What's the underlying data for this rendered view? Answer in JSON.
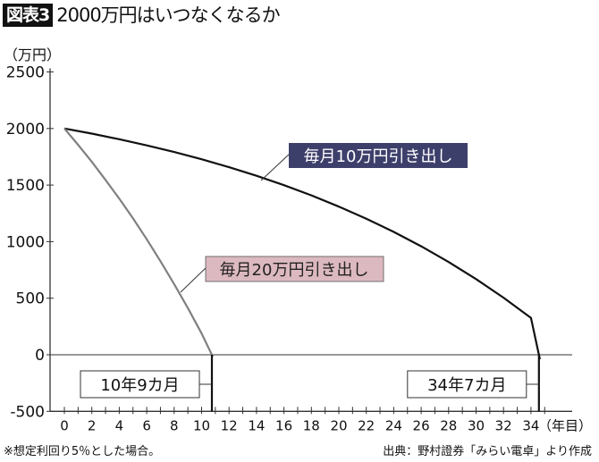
{
  "header": {
    "badge": "図表3",
    "title": "2000万円はいつなくなるか"
  },
  "axis_unit_y": "（万円）",
  "axis_unit_x": "（年目）",
  "footer": {
    "note": "※想定利回り5％とした場合。",
    "source": "出典：野村證券「みらい電卓」より作成"
  },
  "colors": {
    "series_10": "#111111",
    "series_20": "#808080",
    "label_10_bg": "#3d3f6b",
    "label_20_bg": "#dcb9c0"
  },
  "chart_data": {
    "type": "line",
    "title": "2000万円はいつなくなるか",
    "xlabel": "（年目）",
    "ylabel": "（万円）",
    "xlim": [
      0,
      35
    ],
    "ylim": [
      -500,
      2500
    ],
    "xticks": [
      0,
      2,
      4,
      6,
      8,
      10,
      12,
      14,
      16,
      18,
      20,
      22,
      24,
      26,
      28,
      30,
      32,
      34
    ],
    "yticks": [
      2500,
      2000,
      1500,
      1000,
      500,
      0,
      -500
    ],
    "grid": false,
    "series": [
      {
        "name": "毎月10万円引き出し",
        "x": [
          0,
          2,
          4,
          6,
          8,
          10,
          12,
          14,
          16,
          18,
          20,
          22,
          24,
          26,
          28,
          30,
          32,
          34,
          34.58
        ],
        "values": [
          2000,
          1955,
          1905,
          1851,
          1792,
          1728,
          1658,
          1582,
          1499,
          1409,
          1310,
          1203,
          1086,
          959,
          820,
          669,
          505,
          326,
          0
        ]
      },
      {
        "name": "毎月20万円引き出し",
        "x": [
          0,
          1,
          2,
          3,
          4,
          5,
          6,
          7,
          8,
          9,
          10,
          10.75
        ],
        "values": [
          2000,
          1856,
          1705,
          1546,
          1380,
          1205,
          1021,
          828,
          625,
          412,
          188,
          0
        ]
      }
    ],
    "annotations": [
      {
        "text": "毎月10万円引き出し",
        "series": 0
      },
      {
        "text": "毎月20万円引き出し",
        "series": 1
      },
      {
        "text": "10年9カ月",
        "x": 10.75
      },
      {
        "text": "34年7カ月",
        "x": 34.58
      }
    ]
  }
}
